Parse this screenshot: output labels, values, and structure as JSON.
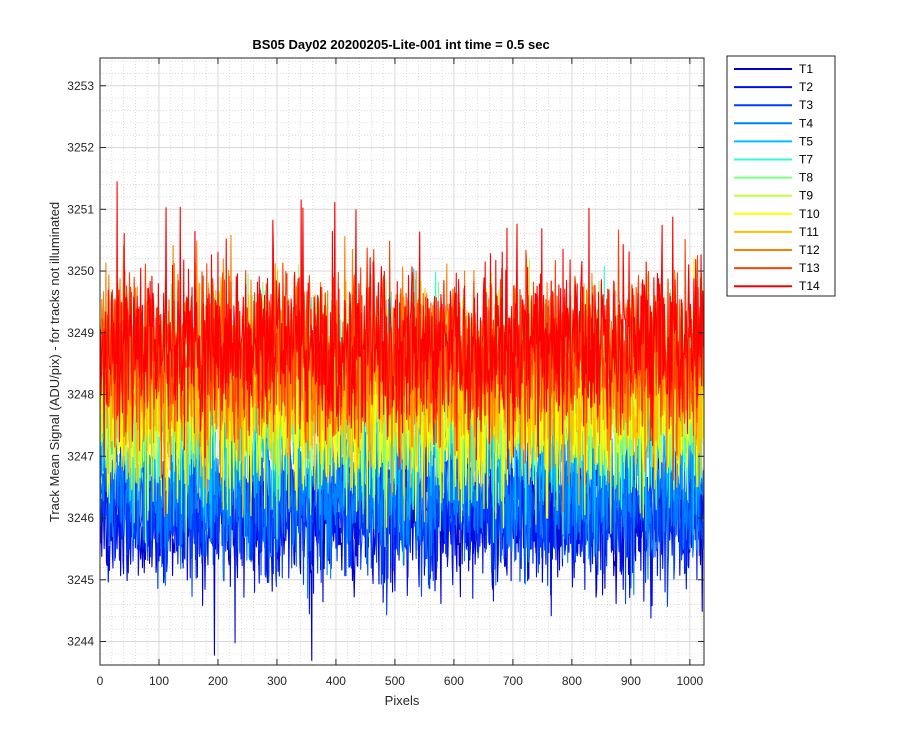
{
  "chart_data": {
    "type": "line",
    "title": "BS05 Day02 20200205-Lite-001 int time = 0.5 sec",
    "xlabel": "Pixels",
    "ylabel": "Track Mean Signal (ADU/pix) - for tracks not illuminated",
    "xlim": [
      0,
      1024
    ],
    "ylim": [
      3243.62,
      3253.45
    ],
    "xticks": [
      0,
      100,
      200,
      300,
      400,
      500,
      600,
      700,
      800,
      900,
      1000
    ],
    "yticks": [
      3244,
      3245,
      3246,
      3247,
      3248,
      3249,
      3250,
      3251,
      3252,
      3253
    ],
    "grid": "major and minor",
    "legend_position": "outside-top-right",
    "n_points_per_series": 1024,
    "series": [
      {
        "name": "T1",
        "color": "#0000cc",
        "mean": 3246.0,
        "noise": 0.55
      },
      {
        "name": "T2",
        "color": "#0010e6",
        "mean": 3246.1,
        "noise": 0.55
      },
      {
        "name": "T3",
        "color": "#0040ff",
        "mean": 3246.2,
        "noise": 0.55
      },
      {
        "name": "T4",
        "color": "#0080ff",
        "mean": 3246.5,
        "noise": 0.6
      },
      {
        "name": "T5",
        "color": "#00c0ff",
        "mean": 3247.5,
        "noise": 0.7
      },
      {
        "name": "T7",
        "color": "#30ffd0",
        "mean": 3248.0,
        "noise": 0.7
      },
      {
        "name": "T8",
        "color": "#80ff80",
        "mean": 3248.0,
        "noise": 0.7
      },
      {
        "name": "T9",
        "color": "#c0ff40",
        "mean": 3247.9,
        "noise": 0.7
      },
      {
        "name": "T10",
        "color": "#ffff00",
        "mean": 3247.9,
        "noise": 0.7
      },
      {
        "name": "T11",
        "color": "#ffc000",
        "mean": 3248.2,
        "noise": 0.7
      },
      {
        "name": "T12",
        "color": "#ff8000",
        "mean": 3248.5,
        "noise": 0.7
      },
      {
        "name": "T13",
        "color": "#ff4000",
        "mean": 3248.7,
        "noise": 0.7
      },
      {
        "name": "T14",
        "color": "#ff0000",
        "mean": 3248.8,
        "noise": 0.7
      }
    ]
  }
}
